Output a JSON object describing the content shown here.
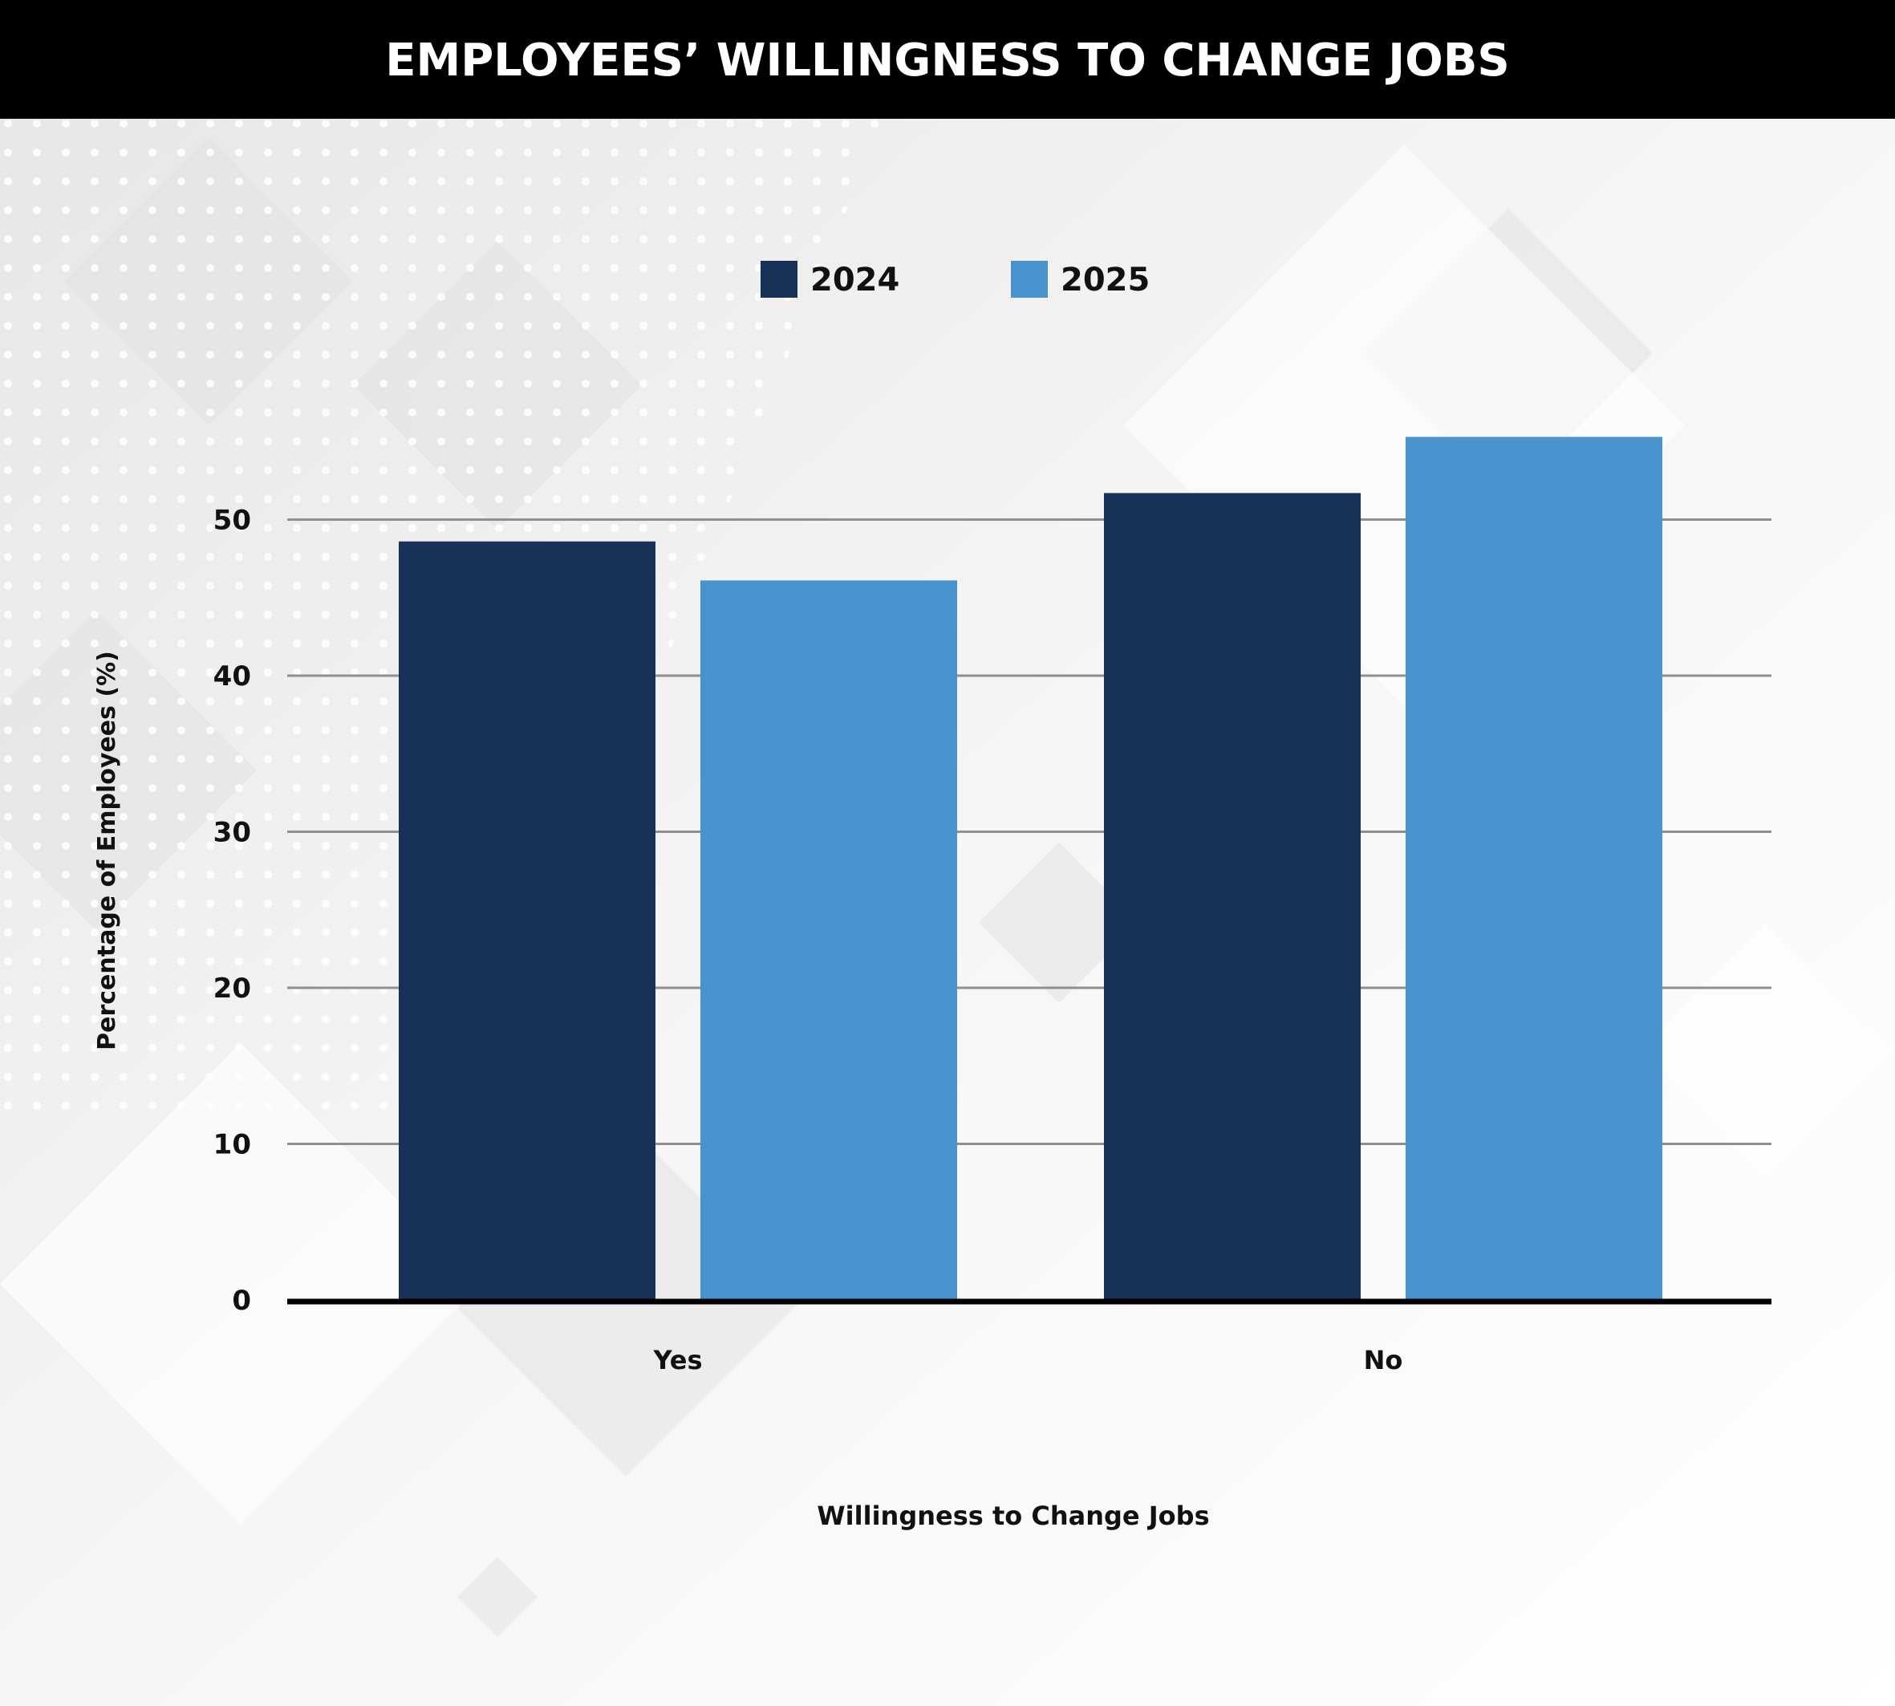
{
  "header": {
    "title": "EMPLOYEES’ WILLINGNESS TO CHANGE JOBS"
  },
  "colors": {
    "header_background": "#000000",
    "header_text": "#ffffff",
    "series_2024": "#183158",
    "series_2025": "#4892ce",
    "gridline": "#8f8f8f",
    "axis": "#000000",
    "text": "#111111"
  },
  "chart_data": {
    "type": "bar",
    "title": "EMPLOYEES’ WILLINGNESS TO CHANGE JOBS",
    "xlabel": "Willingness to Change Jobs",
    "ylabel": "Percentage of Employees (%)",
    "categories": [
      "Yes",
      "No"
    ],
    "series": [
      {
        "name": "2024",
        "values": [
          48.6,
          51.7
        ]
      },
      {
        "name": "2025",
        "values": [
          46.1,
          55.3
        ]
      }
    ],
    "ylim": [
      0,
      55
    ],
    "yticks": [
      0,
      10,
      20,
      30,
      40,
      50
    ],
    "grid": true,
    "legend_position": "top-center"
  }
}
